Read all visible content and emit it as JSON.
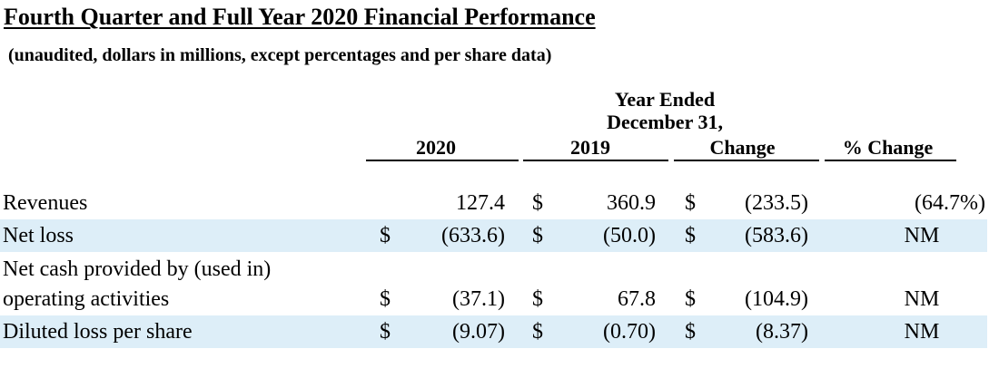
{
  "title": "Fourth Quarter and Full Year 2020 Financial Performance",
  "subtitle": "(unaudited, dollars in millions, except percentages and per share data)",
  "period": {
    "line1": "Year Ended",
    "line2": "December 31,"
  },
  "columns": {
    "c2020": "2020",
    "c2019": "2019",
    "change": "Change",
    "pct_change": "% Change"
  },
  "rows": [
    {
      "label": "Revenues",
      "cur2020": "",
      "v2020": "127.4",
      "cur2019": "$",
      "v2019": "360.9",
      "cur_change": "$",
      "change": "(233.5)",
      "pct": "(64.7%)"
    },
    {
      "label": "Net loss",
      "cur2020": "$",
      "v2020": "(633.6)",
      "cur2019": "$",
      "v2019": "(50.0)",
      "cur_change": "$",
      "change": "(583.6)",
      "pct": "NM"
    },
    {
      "label_line1": "Net cash provided by (used in)",
      "label": "operating activities",
      "cur2020": "$",
      "v2020": "(37.1)",
      "cur2019": "$",
      "v2019": "67.8",
      "cur_change": "$",
      "change": "(104.9)",
      "pct": "NM"
    },
    {
      "label": "Diluted loss per share",
      "cur2020": "$",
      "v2020": "(9.07)",
      "cur2019": "$",
      "v2019": "(0.70)",
      "cur_change": "$",
      "change": "(8.37)",
      "pct": "NM"
    }
  ]
}
